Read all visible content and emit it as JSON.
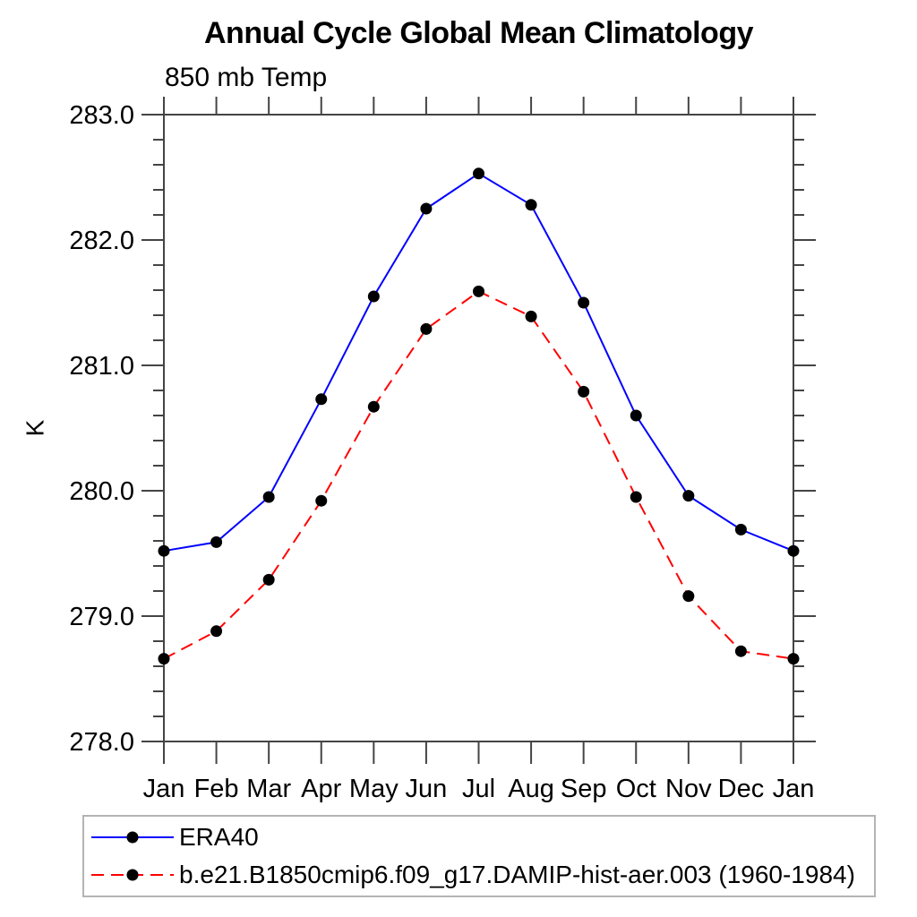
{
  "title": "Annual Cycle Global Mean Climatology",
  "subtitle": "850 mb Temp",
  "colors": {
    "era40_line": "#0000ff",
    "model_line": "#ff0000",
    "marker": "#000000",
    "axis": "#444444",
    "legend_border": "#b4b4b4",
    "text": "#000000"
  },
  "chart_data": {
    "type": "line",
    "title": "Annual Cycle Global Mean Climatology",
    "subtitle": "850 mb Temp",
    "xlabel": "",
    "ylabel": "K",
    "categories": [
      "Jan",
      "Feb",
      "Mar",
      "Apr",
      "May",
      "Jun",
      "Jul",
      "Aug",
      "Sep",
      "Oct",
      "Nov",
      "Dec",
      "Jan"
    ],
    "ylim": [
      278.0,
      283.0
    ],
    "y_ticks": [
      278.0,
      279.0,
      280.0,
      281.0,
      282.0,
      283.0
    ],
    "y_tick_labels": [
      "278.0",
      "279.0",
      "280.0",
      "281.0",
      "282.0",
      "283.0"
    ],
    "minor_tick_interval": 0.2,
    "grid": false,
    "legend_position": "bottom-left",
    "series": [
      {
        "name": "ERA40",
        "color": "#0000ff",
        "style": "solid",
        "marker": "circle",
        "values": [
          279.52,
          279.59,
          279.95,
          280.73,
          281.55,
          282.25,
          282.53,
          282.28,
          281.5,
          280.6,
          279.96,
          279.69,
          279.52
        ]
      },
      {
        "name": "b.e21.B1850cmip6.f09_g17.DAMIP-hist-aer.003 (1960-1984)",
        "color": "#ff0000",
        "style": "dashed",
        "marker": "circle",
        "values": [
          278.66,
          278.88,
          279.29,
          279.92,
          280.67,
          281.29,
          281.59,
          281.39,
          280.79,
          279.95,
          279.16,
          278.72,
          278.66
        ]
      }
    ]
  }
}
